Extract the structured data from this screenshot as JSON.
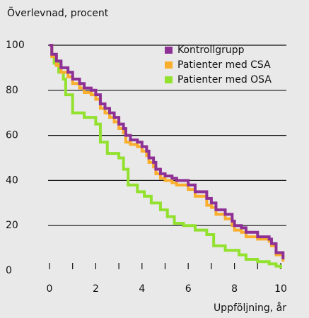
{
  "chart_data": {
    "type": "line",
    "step": true,
    "ylabel": "Överlevnad, procent",
    "xlabel": "Uppföljning, år",
    "xlim": [
      0,
      10
    ],
    "ylim": [
      0,
      100
    ],
    "xticks": [
      0,
      2,
      4,
      6,
      8,
      10
    ],
    "xminorticks": [
      1,
      3,
      5,
      7,
      9
    ],
    "yticks": [
      0,
      20,
      40,
      60,
      80,
      100
    ],
    "grid": true,
    "legend": "upper right",
    "series": [
      {
        "name": "Kontrollgrupp",
        "color": "#8e3196",
        "x": [
          0,
          0.1,
          0.3,
          0.5,
          0.8,
          1,
          1.3,
          1.5,
          1.8,
          2,
          2.2,
          2.4,
          2.6,
          2.8,
          3,
          3.2,
          3.3,
          3.5,
          3.8,
          4,
          4.2,
          4.3,
          4.5,
          4.6,
          4.8,
          5,
          5.3,
          5.5,
          6,
          6.3,
          6.8,
          7,
          7.2,
          7.6,
          7.9,
          8,
          8.3,
          8.5,
          9,
          9.5,
          9.6,
          9.8,
          10.1
        ],
        "values": [
          100,
          96,
          93,
          90,
          88,
          85,
          83,
          81,
          80,
          78,
          74,
          72,
          70,
          68,
          65,
          63,
          60,
          58,
          57,
          55,
          53,
          50,
          48,
          45,
          43,
          42,
          41,
          40,
          38,
          35,
          32,
          30,
          27,
          25,
          22,
          20,
          19,
          17,
          15,
          14,
          12,
          8,
          5
        ]
      },
      {
        "name": "Patienter med CSA",
        "color": "#f9ae2c",
        "x": [
          0,
          0.1,
          0.3,
          0.5,
          0.8,
          1,
          1.3,
          1.5,
          1.8,
          2,
          2.2,
          2.4,
          2.6,
          2.8,
          3,
          3.2,
          3.3,
          3.5,
          3.8,
          4,
          4.2,
          4.3,
          4.5,
          4.6,
          4.8,
          5,
          5.3,
          5.5,
          6,
          6.3,
          6.8,
          7,
          7.2,
          7.6,
          7.9,
          8,
          8.3,
          8.5,
          9,
          9.5,
          9.6,
          9.8,
          10.1
        ],
        "values": [
          100,
          95,
          91,
          88,
          86,
          83,
          81,
          79,
          78,
          76,
          72,
          70,
          68,
          66,
          63,
          61,
          57,
          56,
          55,
          53,
          51,
          48,
          46,
          43,
          41,
          40,
          39,
          38,
          36,
          33,
          29,
          28,
          25,
          23,
          20,
          18,
          17,
          15,
          14,
          13,
          11,
          7,
          4
        ]
      },
      {
        "name": "Patienter med OSA",
        "color": "#93e12f",
        "x": [
          0,
          0.1,
          0.2,
          0.4,
          0.6,
          0.7,
          1,
          1.5,
          2,
          2.2,
          2.5,
          3,
          3.2,
          3.4,
          3.8,
          4.1,
          4.4,
          4.8,
          5.1,
          5.4,
          5.8,
          6.3,
          6.8,
          7.1,
          7.6,
          8.2,
          8.5,
          9,
          9.5,
          9.8,
          10
        ],
        "values": [
          100,
          95,
          92,
          88,
          85,
          78,
          70,
          68,
          65,
          57,
          52,
          50,
          45,
          38,
          35,
          33,
          30,
          27,
          24,
          21,
          20,
          18,
          16,
          11,
          9,
          7,
          5,
          4,
          3,
          2,
          1
        ]
      }
    ]
  }
}
